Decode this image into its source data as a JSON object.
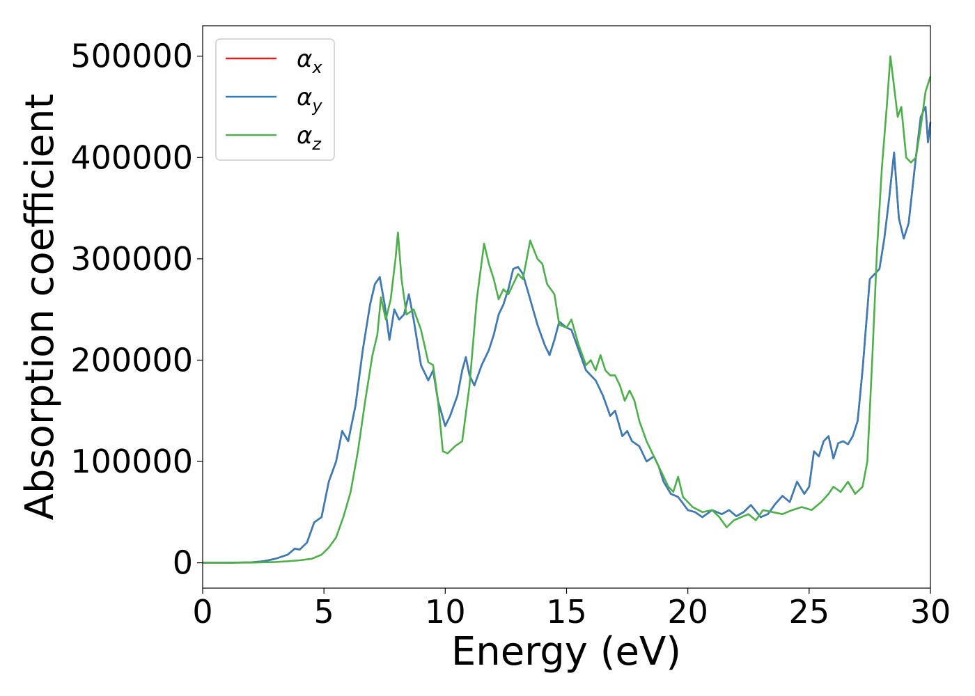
{
  "chart_data": {
    "type": "line",
    "title": "",
    "xlabel": "Energy (eV)",
    "ylabel": "Absorption coefficient",
    "xlim": [
      0,
      30
    ],
    "ylim": [
      -25000,
      530000
    ],
    "xticks": [
      0,
      5,
      10,
      15,
      20,
      25,
      30
    ],
    "yticks": [
      0,
      100000,
      200000,
      300000,
      400000,
      500000
    ],
    "xtick_labels": [
      "0",
      "5",
      "10",
      "15",
      "20",
      "25",
      "30"
    ],
    "ytick_labels": [
      "0",
      "100000",
      "200000",
      "300000",
      "400000",
      "500000"
    ],
    "grid": false,
    "legend_position": "top-left",
    "series": [
      {
        "name": "αx",
        "legend_base": "α",
        "legend_sub": "x",
        "color": "#e41a1c",
        "x": [
          0,
          1,
          2,
          2.5,
          3,
          3.5,
          3.8,
          4.0,
          4.3,
          4.6,
          4.9,
          5.2,
          5.5,
          5.75,
          6.0,
          6.3,
          6.6,
          6.9,
          7.1,
          7.3,
          7.5,
          7.7,
          7.9,
          8.1,
          8.3,
          8.5,
          8.7,
          9.0,
          9.3,
          9.5,
          9.7,
          10.0,
          10.2,
          10.5,
          10.7,
          10.85,
          11.0,
          11.2,
          11.5,
          11.8,
          12.0,
          12.2,
          12.4,
          12.6,
          12.8,
          13.0,
          13.2,
          13.5,
          13.8,
          14.1,
          14.3,
          14.5,
          14.7,
          15.0,
          15.2,
          15.5,
          15.8,
          16.0,
          16.2,
          16.5,
          16.8,
          17.0,
          17.3,
          17.5,
          17.7,
          18.0,
          18.3,
          18.6,
          18.8,
          19.0,
          19.3,
          19.6,
          20.0,
          20.3,
          20.6,
          21.0,
          21.4,
          21.7,
          22.0,
          22.3,
          22.6,
          23.0,
          23.3,
          23.6,
          23.9,
          24.2,
          24.5,
          24.8,
          25.0,
          25.2,
          25.4,
          25.6,
          25.8,
          26.0,
          26.2,
          26.4,
          26.6,
          26.8,
          27.0,
          27.2,
          27.5,
          27.7,
          27.9,
          28.1,
          28.3,
          28.5,
          28.7,
          28.9,
          29.1,
          29.4,
          29.6,
          29.8,
          29.9,
          30.0
        ],
        "y": [
          0,
          0,
          500,
          1500,
          4000,
          8000,
          14000,
          13000,
          20000,
          40000,
          45000,
          80000,
          100000,
          130000,
          120000,
          155000,
          210000,
          255000,
          275000,
          282000,
          255000,
          220000,
          250000,
          240000,
          245000,
          265000,
          240000,
          195000,
          180000,
          190000,
          160000,
          135000,
          145000,
          165000,
          190000,
          203000,
          185000,
          175000,
          195000,
          210000,
          225000,
          245000,
          255000,
          270000,
          290000,
          292000,
          285000,
          260000,
          235000,
          215000,
          205000,
          220000,
          238000,
          232000,
          230000,
          210000,
          190000,
          185000,
          180000,
          165000,
          145000,
          150000,
          125000,
          130000,
          120000,
          115000,
          100000,
          105000,
          95000,
          80000,
          68000,
          65000,
          52000,
          50000,
          45000,
          52000,
          48000,
          52000,
          46000,
          50000,
          57000,
          45000,
          48000,
          58000,
          66000,
          60000,
          80000,
          68000,
          75000,
          110000,
          105000,
          120000,
          125000,
          103000,
          118000,
          120000,
          117000,
          125000,
          140000,
          190000,
          280000,
          285000,
          290000,
          320000,
          360000,
          405000,
          340000,
          320000,
          335000,
          400000,
          440000,
          450000,
          415000,
          435000
        ]
      },
      {
        "name": "αy",
        "legend_base": "α",
        "legend_sub": "y",
        "color": "#377eb8",
        "x": [
          0,
          1,
          2,
          2.5,
          3,
          3.5,
          3.8,
          4.0,
          4.3,
          4.6,
          4.9,
          5.2,
          5.5,
          5.75,
          6.0,
          6.3,
          6.6,
          6.9,
          7.1,
          7.3,
          7.5,
          7.7,
          7.9,
          8.1,
          8.3,
          8.5,
          8.7,
          9.0,
          9.3,
          9.5,
          9.7,
          10.0,
          10.2,
          10.5,
          10.7,
          10.85,
          11.0,
          11.2,
          11.5,
          11.8,
          12.0,
          12.2,
          12.4,
          12.6,
          12.8,
          13.0,
          13.2,
          13.5,
          13.8,
          14.1,
          14.3,
          14.5,
          14.7,
          15.0,
          15.2,
          15.5,
          15.8,
          16.0,
          16.2,
          16.5,
          16.8,
          17.0,
          17.3,
          17.5,
          17.7,
          18.0,
          18.3,
          18.6,
          18.8,
          19.0,
          19.3,
          19.6,
          20.0,
          20.3,
          20.6,
          21.0,
          21.4,
          21.7,
          22.0,
          22.3,
          22.6,
          23.0,
          23.3,
          23.6,
          23.9,
          24.2,
          24.5,
          24.8,
          25.0,
          25.2,
          25.4,
          25.6,
          25.8,
          26.0,
          26.2,
          26.4,
          26.6,
          26.8,
          27.0,
          27.2,
          27.5,
          27.7,
          27.9,
          28.1,
          28.3,
          28.5,
          28.7,
          28.9,
          29.1,
          29.4,
          29.6,
          29.8,
          29.9,
          30.0
        ],
        "y": [
          0,
          0,
          500,
          1500,
          4000,
          8000,
          14000,
          13000,
          20000,
          40000,
          45000,
          80000,
          100000,
          130000,
          120000,
          155000,
          210000,
          255000,
          275000,
          282000,
          255000,
          220000,
          250000,
          240000,
          245000,
          265000,
          240000,
          195000,
          180000,
          190000,
          160000,
          135000,
          145000,
          165000,
          190000,
          203000,
          185000,
          175000,
          195000,
          210000,
          225000,
          245000,
          255000,
          270000,
          290000,
          292000,
          285000,
          260000,
          235000,
          215000,
          205000,
          220000,
          238000,
          232000,
          230000,
          210000,
          190000,
          185000,
          180000,
          165000,
          145000,
          150000,
          125000,
          130000,
          120000,
          115000,
          100000,
          105000,
          95000,
          80000,
          68000,
          65000,
          52000,
          50000,
          45000,
          52000,
          48000,
          52000,
          46000,
          50000,
          57000,
          45000,
          48000,
          58000,
          66000,
          60000,
          80000,
          68000,
          75000,
          110000,
          105000,
          120000,
          125000,
          103000,
          118000,
          120000,
          117000,
          125000,
          140000,
          190000,
          280000,
          285000,
          290000,
          320000,
          360000,
          405000,
          340000,
          320000,
          335000,
          400000,
          440000,
          450000,
          415000,
          435000
        ]
      },
      {
        "name": "αz",
        "legend_base": "α",
        "legend_sub": "z",
        "color": "#4daf4a",
        "x": [
          0,
          1,
          2,
          3,
          3.5,
          4.0,
          4.5,
          4.9,
          5.2,
          5.5,
          5.8,
          6.1,
          6.4,
          6.7,
          7.0,
          7.2,
          7.35,
          7.55,
          7.75,
          7.95,
          8.05,
          8.2,
          8.4,
          8.7,
          9.0,
          9.3,
          9.5,
          9.7,
          9.9,
          10.1,
          10.4,
          10.7,
          11.0,
          11.3,
          11.6,
          11.8,
          12.0,
          12.2,
          12.4,
          12.6,
          12.8,
          13.0,
          13.2,
          13.5,
          13.8,
          14.0,
          14.2,
          14.5,
          14.7,
          15.0,
          15.2,
          15.5,
          15.8,
          16.0,
          16.2,
          16.4,
          16.6,
          16.8,
          17.0,
          17.2,
          17.4,
          17.6,
          17.8,
          18.0,
          18.3,
          18.6,
          18.9,
          19.2,
          19.4,
          19.6,
          19.8,
          20.2,
          20.6,
          21.0,
          21.3,
          21.6,
          21.9,
          22.2,
          22.5,
          22.8,
          23.1,
          23.5,
          23.9,
          24.3,
          24.7,
          25.1,
          25.5,
          25.8,
          26.0,
          26.3,
          26.6,
          26.9,
          27.2,
          27.4,
          27.6,
          27.8,
          28.0,
          28.2,
          28.35,
          28.5,
          28.65,
          28.8,
          29.0,
          29.2,
          29.4,
          29.6,
          29.8,
          30.0
        ],
        "y": [
          0,
          0,
          200,
          800,
          1500,
          2500,
          4000,
          8000,
          15000,
          25000,
          45000,
          70000,
          110000,
          160000,
          205000,
          225000,
          262000,
          240000,
          260000,
          300000,
          326000,
          280000,
          245000,
          250000,
          230000,
          198000,
          195000,
          160000,
          110000,
          108000,
          115000,
          120000,
          175000,
          260000,
          315000,
          295000,
          280000,
          260000,
          270000,
          265000,
          275000,
          285000,
          280000,
          318000,
          300000,
          295000,
          275000,
          265000,
          235000,
          232000,
          240000,
          215000,
          195000,
          200000,
          190000,
          205000,
          190000,
          185000,
          185000,
          175000,
          160000,
          170000,
          160000,
          140000,
          120000,
          105000,
          90000,
          75000,
          70000,
          85000,
          65000,
          55000,
          50000,
          52000,
          45000,
          35000,
          42000,
          45000,
          48000,
          42000,
          52000,
          50000,
          48000,
          52000,
          55000,
          52000,
          60000,
          68000,
          75000,
          70000,
          80000,
          68000,
          75000,
          100000,
          200000,
          310000,
          390000,
          450000,
          500000,
          470000,
          440000,
          450000,
          400000,
          395000,
          400000,
          430000,
          465000,
          480000
        ]
      }
    ]
  }
}
